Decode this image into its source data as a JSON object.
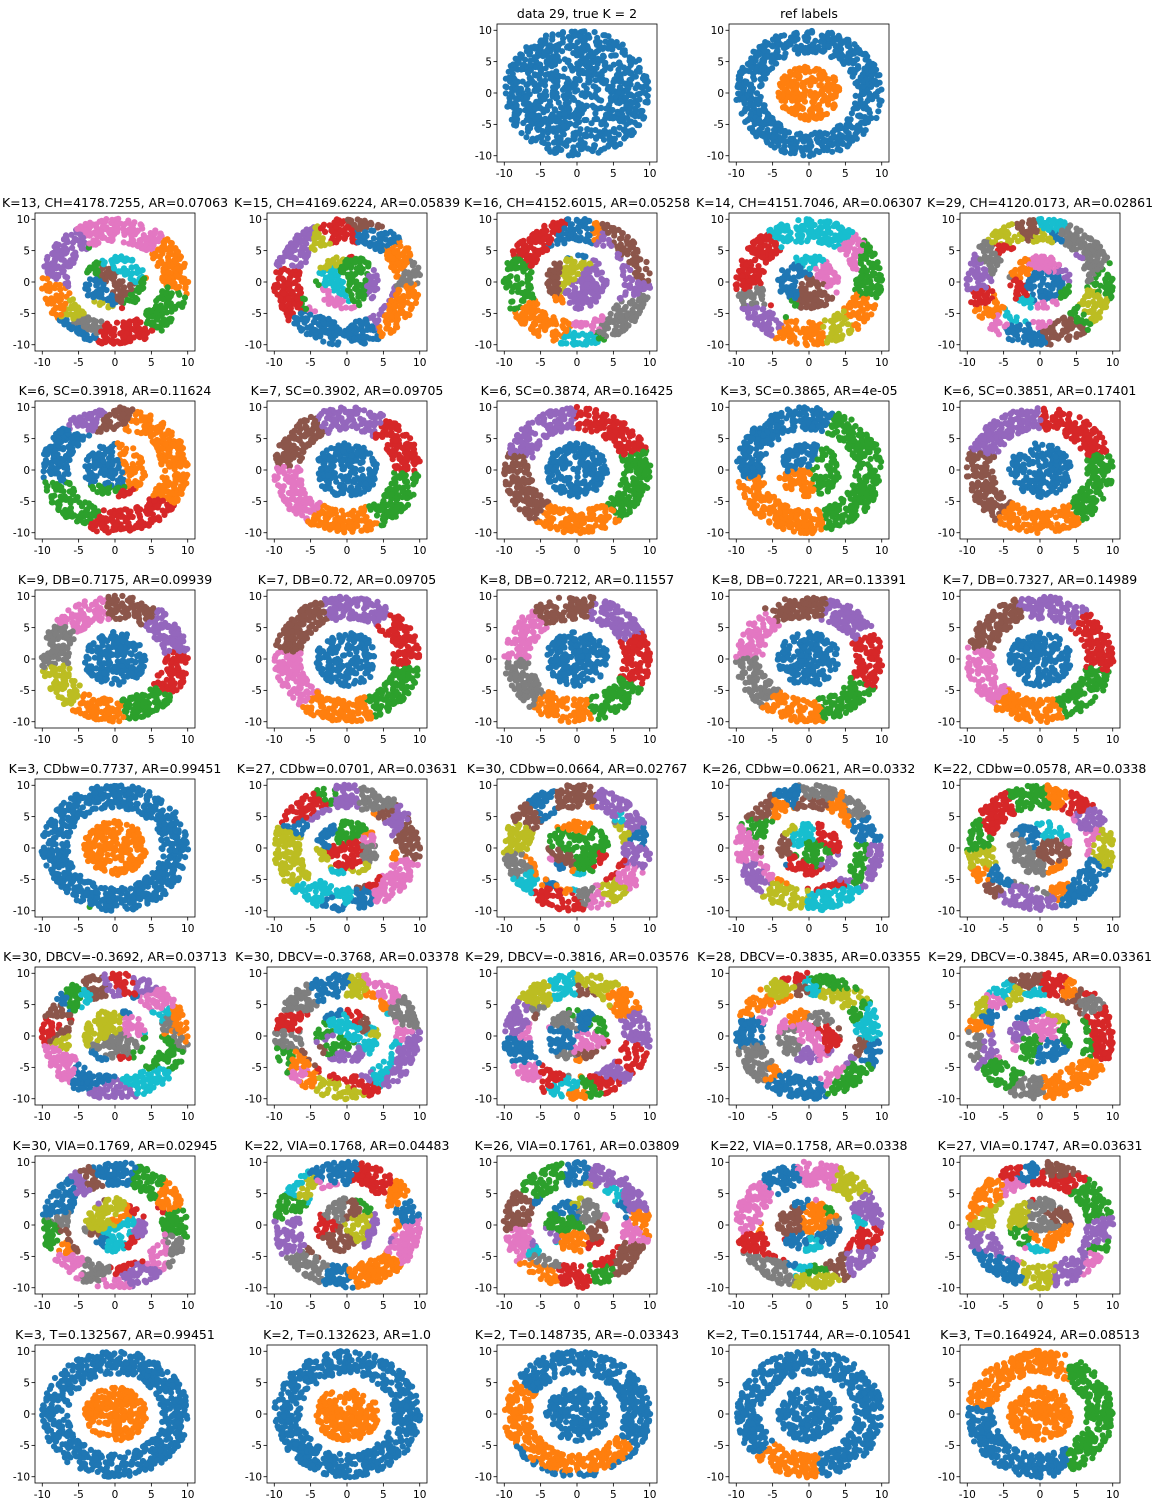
{
  "palette": [
    "#1f77b4",
    "#ff7f0e",
    "#2ca02c",
    "#d62728",
    "#9467bd",
    "#8c564b",
    "#e377c2",
    "#7f7f7f",
    "#bcbd22",
    "#17becf"
  ],
  "chart_data": [
    {
      "type": "scatter",
      "title": "data 29, true K = 2",
      "xlim": [
        -11,
        11
      ],
      "ylim": [
        -11,
        11
      ],
      "xticks": [
        -10,
        -5,
        0,
        5,
        10
      ],
      "yticks": [
        -10,
        -5,
        0,
        5,
        10
      ],
      "grid": false,
      "legend": "none",
      "k": 1,
      "pattern": "single"
    },
    {
      "type": "scatter",
      "title": "ref labels",
      "xlim": [
        -11,
        11
      ],
      "ylim": [
        -11,
        11
      ],
      "xticks": [
        -10,
        -5,
        0,
        5,
        10
      ],
      "yticks": [
        -10,
        -5,
        0,
        5,
        10
      ],
      "grid": false,
      "legend": "none",
      "k": 2,
      "pattern": "ring"
    },
    {
      "type": "scatter",
      "title": "K=13, CH=4178.7255, AR=0.07063",
      "xlim": [
        -11,
        11
      ],
      "ylim": [
        -11,
        11
      ],
      "xticks": [
        -10,
        -5,
        0,
        5,
        10
      ],
      "yticks": [
        -10,
        -5,
        0,
        5,
        10
      ],
      "k": 13,
      "pattern": "voronoi"
    },
    {
      "type": "scatter",
      "title": "K=15, CH=4169.6224, AR=0.05839",
      "xlim": [
        -11,
        11
      ],
      "ylim": [
        -11,
        11
      ],
      "xticks": [
        -10,
        -5,
        0,
        5,
        10
      ],
      "yticks": [
        -10,
        -5,
        0,
        5,
        10
      ],
      "k": 15,
      "pattern": "voronoi"
    },
    {
      "type": "scatter",
      "title": "K=16, CH=4152.6015, AR=0.05258",
      "xlim": [
        -11,
        11
      ],
      "ylim": [
        -11,
        11
      ],
      "xticks": [
        -10,
        -5,
        0,
        5,
        10
      ],
      "yticks": [
        -10,
        -5,
        0,
        5,
        10
      ],
      "k": 16,
      "pattern": "voronoi"
    },
    {
      "type": "scatter",
      "title": "K=14, CH=4151.7046, AR=0.06307",
      "xlim": [
        -11,
        11
      ],
      "ylim": [
        -11,
        11
      ],
      "xticks": [
        -10,
        -5,
        0,
        5,
        10
      ],
      "yticks": [
        -10,
        -5,
        0,
        5,
        10
      ],
      "k": 14,
      "pattern": "voronoi"
    },
    {
      "type": "scatter",
      "title": "K=29, CH=4120.0173, AR=0.02861",
      "xlim": [
        -11,
        11
      ],
      "ylim": [
        -11,
        11
      ],
      "xticks": [
        -10,
        -5,
        0,
        5,
        10
      ],
      "yticks": [
        -10,
        -5,
        0,
        5,
        10
      ],
      "k": 29,
      "pattern": "voronoi"
    },
    {
      "type": "scatter",
      "title": "K=6, SC=0.3918, AR=0.11624",
      "xlim": [
        -11,
        11
      ],
      "ylim": [
        -11,
        11
      ],
      "xticks": [
        -10,
        -5,
        0,
        5,
        10
      ],
      "yticks": [
        -10,
        -5,
        0,
        5,
        10
      ],
      "k": 6,
      "pattern": "voronoi"
    },
    {
      "type": "scatter",
      "title": "K=7, SC=0.3902, AR=0.09705",
      "xlim": [
        -11,
        11
      ],
      "ylim": [
        -11,
        11
      ],
      "xticks": [
        -10,
        -5,
        0,
        5,
        10
      ],
      "yticks": [
        -10,
        -5,
        0,
        5,
        10
      ],
      "k": 7,
      "pattern": "sectors"
    },
    {
      "type": "scatter",
      "title": "K=6, SC=0.3874, AR=0.16425",
      "xlim": [
        -11,
        11
      ],
      "ylim": [
        -11,
        11
      ],
      "xticks": [
        -10,
        -5,
        0,
        5,
        10
      ],
      "yticks": [
        -10,
        -5,
        0,
        5,
        10
      ],
      "k": 6,
      "pattern": "sectors"
    },
    {
      "type": "scatter",
      "title": "K=3, SC=0.3865, AR=4e-05",
      "xlim": [
        -11,
        11
      ],
      "ylim": [
        -11,
        11
      ],
      "xticks": [
        -10,
        -5,
        0,
        5,
        10
      ],
      "yticks": [
        -10,
        -5,
        0,
        5,
        10
      ],
      "k": 3,
      "pattern": "voronoi"
    },
    {
      "type": "scatter",
      "title": "K=6, SC=0.3851, AR=0.17401",
      "xlim": [
        -11,
        11
      ],
      "ylim": [
        -11,
        11
      ],
      "xticks": [
        -10,
        -5,
        0,
        5,
        10
      ],
      "yticks": [
        -10,
        -5,
        0,
        5,
        10
      ],
      "k": 6,
      "pattern": "sectors"
    },
    {
      "type": "scatter",
      "title": "K=9, DB=0.7175, AR=0.09939",
      "xlim": [
        -11,
        11
      ],
      "ylim": [
        -11,
        11
      ],
      "xticks": [
        -10,
        -5,
        0,
        5,
        10
      ],
      "yticks": [
        -10,
        -5,
        0,
        5,
        10
      ],
      "k": 9,
      "pattern": "sectors"
    },
    {
      "type": "scatter",
      "title": "K=7, DB=0.72, AR=0.09705",
      "xlim": [
        -11,
        11
      ],
      "ylim": [
        -11,
        11
      ],
      "xticks": [
        -10,
        -5,
        0,
        5,
        10
      ],
      "yticks": [
        -10,
        -5,
        0,
        5,
        10
      ],
      "k": 7,
      "pattern": "sectors"
    },
    {
      "type": "scatter",
      "title": "K=8, DB=0.7212, AR=0.11557",
      "xlim": [
        -11,
        11
      ],
      "ylim": [
        -11,
        11
      ],
      "xticks": [
        -10,
        -5,
        0,
        5,
        10
      ],
      "yticks": [
        -10,
        -5,
        0,
        5,
        10
      ],
      "k": 8,
      "pattern": "sectors"
    },
    {
      "type": "scatter",
      "title": "K=8, DB=0.7221, AR=0.13391",
      "xlim": [
        -11,
        11
      ],
      "ylim": [
        -11,
        11
      ],
      "xticks": [
        -10,
        -5,
        0,
        5,
        10
      ],
      "yticks": [
        -10,
        -5,
        0,
        5,
        10
      ],
      "k": 8,
      "pattern": "sectors"
    },
    {
      "type": "scatter",
      "title": "K=7, DB=0.7327, AR=0.14989",
      "xlim": [
        -11,
        11
      ],
      "ylim": [
        -11,
        11
      ],
      "xticks": [
        -10,
        -5,
        0,
        5,
        10
      ],
      "yticks": [
        -10,
        -5,
        0,
        5,
        10
      ],
      "k": 7,
      "pattern": "sectors"
    },
    {
      "type": "scatter",
      "title": "K=3, CDbw=0.7737, AR=0.99451",
      "xlim": [
        -11,
        11
      ],
      "ylim": [
        -11,
        11
      ],
      "xticks": [
        -10,
        -5,
        0,
        5,
        10
      ],
      "yticks": [
        -10,
        -5,
        0,
        5,
        10
      ],
      "k": 3,
      "pattern": "ring3"
    },
    {
      "type": "scatter",
      "title": "K=27, CDbw=0.0701, AR=0.03631",
      "xlim": [
        -11,
        11
      ],
      "ylim": [
        -11,
        11
      ],
      "xticks": [
        -10,
        -5,
        0,
        5,
        10
      ],
      "yticks": [
        -10,
        -5,
        0,
        5,
        10
      ],
      "k": 27,
      "pattern": "voronoi"
    },
    {
      "type": "scatter",
      "title": "K=30, CDbw=0.0664, AR=0.02767",
      "xlim": [
        -11,
        11
      ],
      "ylim": [
        -11,
        11
      ],
      "xticks": [
        -10,
        -5,
        0,
        5,
        10
      ],
      "yticks": [
        -10,
        -5,
        0,
        5,
        10
      ],
      "k": 30,
      "pattern": "voronoi"
    },
    {
      "type": "scatter",
      "title": "K=26, CDbw=0.0621, AR=0.0332",
      "xlim": [
        -11,
        11
      ],
      "ylim": [
        -11,
        11
      ],
      "xticks": [
        -10,
        -5,
        0,
        5,
        10
      ],
      "yticks": [
        -10,
        -5,
        0,
        5,
        10
      ],
      "k": 26,
      "pattern": "voronoi"
    },
    {
      "type": "scatter",
      "title": "K=22, CDbw=0.0578, AR=0.0338",
      "xlim": [
        -11,
        11
      ],
      "ylim": [
        -11,
        11
      ],
      "xticks": [
        -10,
        -5,
        0,
        5,
        10
      ],
      "yticks": [
        -10,
        -5,
        0,
        5,
        10
      ],
      "k": 22,
      "pattern": "voronoi"
    },
    {
      "type": "scatter",
      "title": "K=30, DBCV=-0.3692, AR=0.03713",
      "xlim": [
        -11,
        11
      ],
      "ylim": [
        -11,
        11
      ],
      "xticks": [
        -10,
        -5,
        0,
        5,
        10
      ],
      "yticks": [
        -10,
        -5,
        0,
        5,
        10
      ],
      "k": 30,
      "pattern": "voronoi"
    },
    {
      "type": "scatter",
      "title": "K=30, DBCV=-0.3768, AR=0.03378",
      "xlim": [
        -11,
        11
      ],
      "ylim": [
        -11,
        11
      ],
      "xticks": [
        -10,
        -5,
        0,
        5,
        10
      ],
      "yticks": [
        -10,
        -5,
        0,
        5,
        10
      ],
      "k": 30,
      "pattern": "voronoi"
    },
    {
      "type": "scatter",
      "title": "K=29, DBCV=-0.3816, AR=0.03576",
      "xlim": [
        -11,
        11
      ],
      "ylim": [
        -11,
        11
      ],
      "xticks": [
        -10,
        -5,
        0,
        5,
        10
      ],
      "yticks": [
        -10,
        -5,
        0,
        5,
        10
      ],
      "k": 29,
      "pattern": "voronoi"
    },
    {
      "type": "scatter",
      "title": "K=28, DBCV=-0.3835, AR=0.03355",
      "xlim": [
        -11,
        11
      ],
      "ylim": [
        -11,
        11
      ],
      "xticks": [
        -10,
        -5,
        0,
        5,
        10
      ],
      "yticks": [
        -10,
        -5,
        0,
        5,
        10
      ],
      "k": 28,
      "pattern": "voronoi"
    },
    {
      "type": "scatter",
      "title": "K=29, DBCV=-0.3845, AR=0.03361",
      "xlim": [
        -11,
        11
      ],
      "ylim": [
        -11,
        11
      ],
      "xticks": [
        -10,
        -5,
        0,
        5,
        10
      ],
      "yticks": [
        -10,
        -5,
        0,
        5,
        10
      ],
      "k": 29,
      "pattern": "voronoi"
    },
    {
      "type": "scatter",
      "title": "K=30, VIA=0.1769, AR=0.02945",
      "xlim": [
        -11,
        11
      ],
      "ylim": [
        -11,
        11
      ],
      "xticks": [
        -10,
        -5,
        0,
        5,
        10
      ],
      "yticks": [
        -10,
        -5,
        0,
        5,
        10
      ],
      "k": 30,
      "pattern": "voronoi"
    },
    {
      "type": "scatter",
      "title": "K=22, VIA=0.1768, AR=0.04483",
      "xlim": [
        -11,
        11
      ],
      "ylim": [
        -11,
        11
      ],
      "xticks": [
        -10,
        -5,
        0,
        5,
        10
      ],
      "yticks": [
        -10,
        -5,
        0,
        5,
        10
      ],
      "k": 22,
      "pattern": "voronoi"
    },
    {
      "type": "scatter",
      "title": "K=26, VIA=0.1761, AR=0.03809",
      "xlim": [
        -11,
        11
      ],
      "ylim": [
        -11,
        11
      ],
      "xticks": [
        -10,
        -5,
        0,
        5,
        10
      ],
      "yticks": [
        -10,
        -5,
        0,
        5,
        10
      ],
      "k": 26,
      "pattern": "voronoi"
    },
    {
      "type": "scatter",
      "title": "K=22, VIA=0.1758, AR=0.0338",
      "xlim": [
        -11,
        11
      ],
      "ylim": [
        -11,
        11
      ],
      "xticks": [
        -10,
        -5,
        0,
        5,
        10
      ],
      "yticks": [
        -10,
        -5,
        0,
        5,
        10
      ],
      "k": 22,
      "pattern": "voronoi"
    },
    {
      "type": "scatter",
      "title": "K=27, VIA=0.1747, AR=0.03631",
      "xlim": [
        -11,
        11
      ],
      "ylim": [
        -11,
        11
      ],
      "xticks": [
        -10,
        -5,
        0,
        5,
        10
      ],
      "yticks": [
        -10,
        -5,
        0,
        5,
        10
      ],
      "k": 27,
      "pattern": "voronoi"
    },
    {
      "type": "scatter",
      "title": "K=3, T=0.132567, AR=0.99451",
      "xlim": [
        -11,
        11
      ],
      "ylim": [
        -11,
        11
      ],
      "xticks": [
        -10,
        -5,
        0,
        5,
        10
      ],
      "yticks": [
        -10,
        -5,
        0,
        5,
        10
      ],
      "k": 3,
      "pattern": "ring3"
    },
    {
      "type": "scatter",
      "title": "K=2, T=0.132623, AR=1.0",
      "xlim": [
        -11,
        11
      ],
      "ylim": [
        -11,
        11
      ],
      "xticks": [
        -10,
        -5,
        0,
        5,
        10
      ],
      "yticks": [
        -10,
        -5,
        0,
        5,
        10
      ],
      "k": 2,
      "pattern": "ring"
    },
    {
      "type": "scatter",
      "title": "K=2, T=0.148735, AR=-0.03343",
      "xlim": [
        -11,
        11
      ],
      "ylim": [
        -11,
        11
      ],
      "xticks": [
        -10,
        -5,
        0,
        5,
        10
      ],
      "yticks": [
        -10,
        -5,
        0,
        5,
        10
      ],
      "k": 2,
      "pattern": "arc"
    },
    {
      "type": "scatter",
      "title": "K=2, T=0.151744, AR=-0.10541",
      "xlim": [
        -11,
        11
      ],
      "ylim": [
        -11,
        11
      ],
      "xticks": [
        -10,
        -5,
        0,
        5,
        10
      ],
      "yticks": [
        -10,
        -5,
        0,
        5,
        10
      ],
      "k": 2,
      "pattern": "arc2"
    },
    {
      "type": "scatter",
      "title": "K=3, T=0.164924, AR=0.08513",
      "xlim": [
        -11,
        11
      ],
      "ylim": [
        -11,
        11
      ],
      "xticks": [
        -10,
        -5,
        0,
        5,
        10
      ],
      "yticks": [
        -10,
        -5,
        0,
        5,
        10
      ],
      "k": 3,
      "pattern": "split3"
    }
  ]
}
